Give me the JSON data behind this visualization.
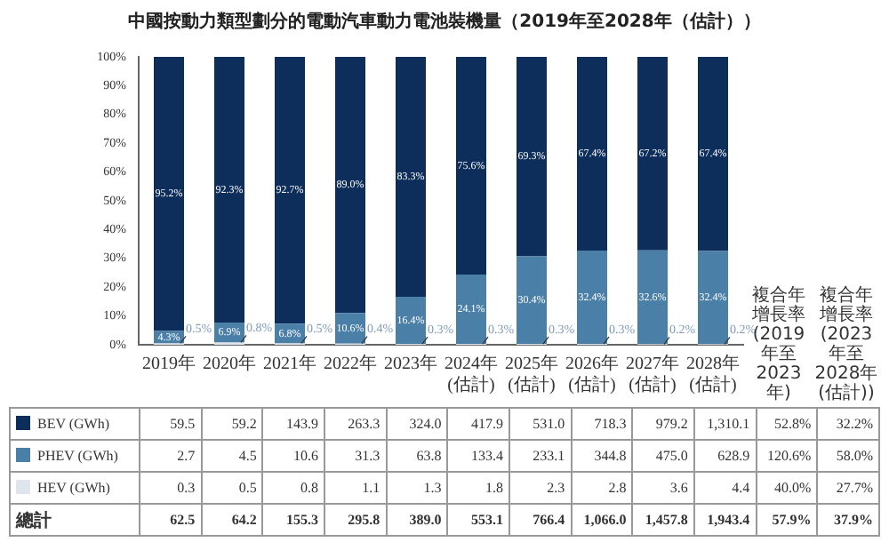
{
  "chart_data": {
    "type": "bar",
    "stacked": true,
    "title": "中國按動力類型劃分的電動汽車動力電池裝機量（2019年至2028年（估計））",
    "categories": [
      "2019年",
      "2020年",
      "2021年",
      "2022年",
      "2023年",
      "2024年 (估計)",
      "2025年 (估計)",
      "2026年 (估計)",
      "2027年 (估計)",
      "2028年 (估計)"
    ],
    "series": [
      {
        "name": "HEV (GWh)",
        "color": "#dfe5ec",
        "values": [
          0.5,
          0.8,
          0.5,
          0.4,
          0.3,
          0.3,
          0.3,
          0.3,
          0.2,
          0.2
        ],
        "value_labels": [
          "0.5%",
          "0.8%",
          "0.5%",
          "0.4%",
          "0.3%",
          "0.3%",
          "0.3%",
          "0.3%",
          "0.2%",
          "0.2%"
        ]
      },
      {
        "name": "PHEV (GWh)",
        "color": "#4a7fa8",
        "values": [
          4.3,
          6.9,
          6.8,
          10.6,
          16.4,
          24.1,
          30.4,
          32.4,
          32.6,
          32.4
        ],
        "value_labels": [
          "4.3%",
          "6.9%",
          "6.8%",
          "10.6%",
          "16.4%",
          "24.1%",
          "30.4%",
          "32.4%",
          "32.6%",
          "32.4%"
        ]
      },
      {
        "name": "BEV (GWh)",
        "color": "#0d2d5a",
        "values": [
          95.2,
          92.3,
          92.7,
          89.0,
          83.3,
          75.6,
          69.3,
          67.4,
          67.2,
          67.4
        ],
        "value_labels": [
          "95.2%",
          "92.3%",
          "92.7%",
          "89.0%",
          "83.3%",
          "75.6%",
          "69.3%",
          "67.4%",
          "67.2%",
          "67.4%"
        ]
      }
    ],
    "ylim": [
      0,
      100
    ],
    "yticks": [
      {
        "value": 0,
        "label": "0%"
      },
      {
        "value": 10,
        "label": "10%"
      },
      {
        "value": 20,
        "label": "20%"
      },
      {
        "value": 30,
        "label": "30%"
      },
      {
        "value": 40,
        "label": "40%"
      },
      {
        "value": 50,
        "label": "50%"
      },
      {
        "value": 60,
        "label": "60%"
      },
      {
        "value": 70,
        "label": "70%"
      },
      {
        "value": 80,
        "label": "80%"
      },
      {
        "value": 90,
        "label": "90%"
      },
      {
        "value": 100,
        "label": "100%"
      }
    ],
    "grid": false,
    "legend": "bottom",
    "annotations": [
      "複合年增長率 (2019年至2023年)",
      "複合年增長率 (2023年至2028年 (估計))",
      "59.5",
      "59.2",
      "143.9",
      "263.3",
      "324.0",
      "417.9",
      "531.0",
      "718.3",
      "979.2",
      "1,310.1",
      "52.8%",
      "32.2%",
      "2.7",
      "4.5",
      "10.6",
      "31.3",
      "63.8",
      "133.4",
      "233.1",
      "344.8",
      "475.0",
      "628.9",
      "120.6%",
      "58.0%",
      "0.3",
      "0.5",
      "0.8",
      "1.1",
      "1.3",
      "1.8",
      "2.3",
      "2.8",
      "3.6",
      "4.4",
      "40.0%",
      "27.7%",
      "總計",
      "62.5",
      "64.2",
      "155.3",
      "295.8",
      "389.0",
      "553.1",
      "766.4",
      "1,066.0",
      "1,457.8",
      "1,943.4",
      "57.9%",
      "37.9%"
    ]
  }
}
